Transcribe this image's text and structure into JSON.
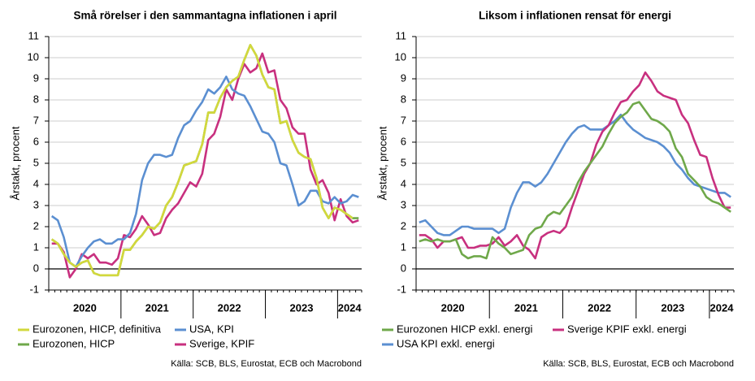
{
  "chart_data": [
    {
      "type": "line",
      "title": "Små rörelser i den sammantagna inflationen i april",
      "y_label": "Årstakt, procent",
      "source": "Källa: SCB, BLS, Eurostat, ECB och Macrobond",
      "year_labels": [
        "2020",
        "2021",
        "2022",
        "2023",
        "2024"
      ],
      "ylim": [
        -1,
        11
      ],
      "yticks": [
        -1,
        0,
        1,
        2,
        3,
        4,
        5,
        6,
        7,
        8,
        9,
        10,
        11
      ],
      "grid": true,
      "series": [
        {
          "name": "Eurozonen, HICP, definitiva",
          "color": "#d2d83c",
          "values": [
            1.4,
            1.2,
            0.7,
            0.3,
            0.1,
            0.3,
            0.4,
            -0.2,
            -0.3,
            -0.3,
            -0.3,
            -0.3,
            0.9,
            0.9,
            1.3,
            1.6,
            2.0,
            1.9,
            2.2,
            3.0,
            3.4,
            4.1,
            4.9,
            5.0,
            5.1,
            5.9,
            7.4,
            7.4,
            8.1,
            8.6,
            8.9,
            9.1,
            9.9,
            10.6,
            10.1,
            9.2,
            8.6,
            8.5,
            6.9,
            7.0,
            6.1,
            5.5,
            5.3,
            5.2,
            4.3,
            2.9,
            2.4,
            2.9,
            2.8,
            2.6,
            2.4,
            null
          ]
        },
        {
          "name": "USA, KPI",
          "color": "#5b8fd1",
          "values": [
            2.5,
            2.3,
            1.5,
            0.3,
            0.1,
            0.6,
            1.0,
            1.3,
            1.4,
            1.2,
            1.2,
            1.4,
            1.4,
            1.7,
            2.6,
            4.2,
            5.0,
            5.4,
            5.4,
            5.3,
            5.4,
            6.2,
            6.8,
            7.0,
            7.5,
            7.9,
            8.5,
            8.3,
            8.6,
            9.1,
            8.5,
            8.3,
            8.2,
            7.7,
            7.1,
            6.5,
            6.4,
            6.0,
            5.0,
            4.9,
            4.0,
            3.0,
            3.2,
            3.7,
            3.7,
            3.2,
            3.1,
            3.4,
            3.1,
            3.2,
            3.5,
            3.4
          ]
        },
        {
          "name": "Eurozonen, HICP",
          "color": "#6fa84a",
          "values": [
            1.4,
            1.2,
            0.7,
            0.3,
            0.1,
            0.3,
            0.4,
            -0.2,
            -0.3,
            -0.3,
            -0.3,
            -0.3,
            0.9,
            0.9,
            1.3,
            1.6,
            2.0,
            1.9,
            2.2,
            3.0,
            3.4,
            4.1,
            4.9,
            5.0,
            5.1,
            5.9,
            7.4,
            7.4,
            8.1,
            8.6,
            8.9,
            9.1,
            9.9,
            10.6,
            10.1,
            9.2,
            8.6,
            8.5,
            6.9,
            7.0,
            6.1,
            5.5,
            5.3,
            5.2,
            4.3,
            2.9,
            2.4,
            2.9,
            2.8,
            2.6,
            2.4,
            2.4
          ]
        },
        {
          "name": "Sverige, KPIF",
          "color": "#c8307f",
          "values": [
            1.2,
            1.2,
            0.8,
            -0.4,
            0.0,
            0.7,
            0.5,
            0.7,
            0.3,
            0.3,
            0.2,
            0.5,
            1.6,
            1.5,
            1.9,
            2.5,
            2.1,
            1.6,
            1.7,
            2.4,
            2.8,
            3.1,
            3.6,
            4.1,
            3.9,
            4.5,
            6.1,
            6.4,
            7.2,
            8.5,
            8.0,
            9.0,
            9.7,
            9.3,
            9.5,
            10.2,
            9.3,
            9.4,
            8.0,
            7.6,
            6.7,
            6.4,
            6.4,
            4.7,
            4.0,
            4.2,
            3.6,
            2.3,
            3.3,
            2.5,
            2.2,
            2.3
          ]
        }
      ]
    },
    {
      "type": "line",
      "title": "Liksom i inflationen rensat för energi",
      "y_label": "Årstakt, procent",
      "source": "Källa: SCB, BLS, Eurostat, ECB och Macrobond",
      "year_labels": [
        "2020",
        "2021",
        "2022",
        "2023",
        "2024"
      ],
      "ylim": [
        -1,
        11
      ],
      "yticks": [
        -1,
        0,
        1,
        2,
        3,
        4,
        5,
        6,
        7,
        8,
        9,
        10,
        11
      ],
      "grid": true,
      "series": [
        {
          "name": "Eurozonen HICP exkl. energi",
          "color": "#6fa84a",
          "values": [
            1.3,
            1.4,
            1.3,
            1.4,
            1.3,
            1.3,
            1.4,
            0.7,
            0.5,
            0.6,
            0.6,
            0.5,
            1.5,
            1.2,
            1.0,
            0.7,
            0.8,
            0.9,
            1.6,
            1.9,
            2.0,
            2.5,
            2.7,
            2.6,
            3.0,
            3.4,
            4.1,
            4.6,
            5.0,
            5.4,
            5.8,
            6.4,
            6.9,
            7.2,
            7.4,
            7.8,
            7.9,
            7.5,
            7.1,
            7.0,
            6.8,
            6.5,
            5.7,
            5.3,
            4.5,
            4.2,
            3.9,
            3.4,
            3.2,
            3.1,
            2.9,
            2.7
          ]
        },
        {
          "name": "Sverige KPIF exkl. energi",
          "color": "#c8307f",
          "values": [
            1.6,
            1.6,
            1.4,
            1.0,
            1.3,
            1.3,
            1.4,
            1.5,
            1.0,
            1.0,
            1.1,
            1.1,
            1.2,
            1.5,
            1.1,
            1.3,
            1.6,
            1.1,
            0.9,
            0.5,
            1.5,
            1.7,
            1.8,
            1.7,
            2.0,
            2.9,
            3.7,
            4.5,
            5.0,
            5.9,
            6.5,
            6.8,
            7.4,
            7.9,
            8.0,
            8.4,
            8.7,
            9.3,
            8.9,
            8.4,
            8.2,
            8.1,
            8.0,
            7.3,
            6.9,
            6.1,
            5.4,
            5.3,
            4.3,
            3.5,
            2.9,
            2.9
          ]
        },
        {
          "name": "USA KPI exkl. energi",
          "color": "#5b8fd1",
          "values": [
            2.2,
            2.3,
            2.0,
            1.7,
            1.6,
            1.6,
            1.8,
            2.0,
            2.0,
            1.9,
            1.9,
            1.9,
            1.9,
            1.7,
            1.9,
            2.9,
            3.6,
            4.1,
            4.1,
            3.9,
            4.1,
            4.5,
            5.0,
            5.5,
            6.0,
            6.4,
            6.7,
            6.8,
            6.6,
            6.6,
            6.6,
            6.8,
            7.0,
            7.3,
            6.9,
            6.6,
            6.4,
            6.2,
            6.1,
            6.0,
            5.8,
            5.5,
            5.0,
            4.7,
            4.3,
            4.0,
            3.9,
            3.8,
            3.7,
            3.6,
            3.6,
            3.4
          ]
        }
      ]
    }
  ]
}
